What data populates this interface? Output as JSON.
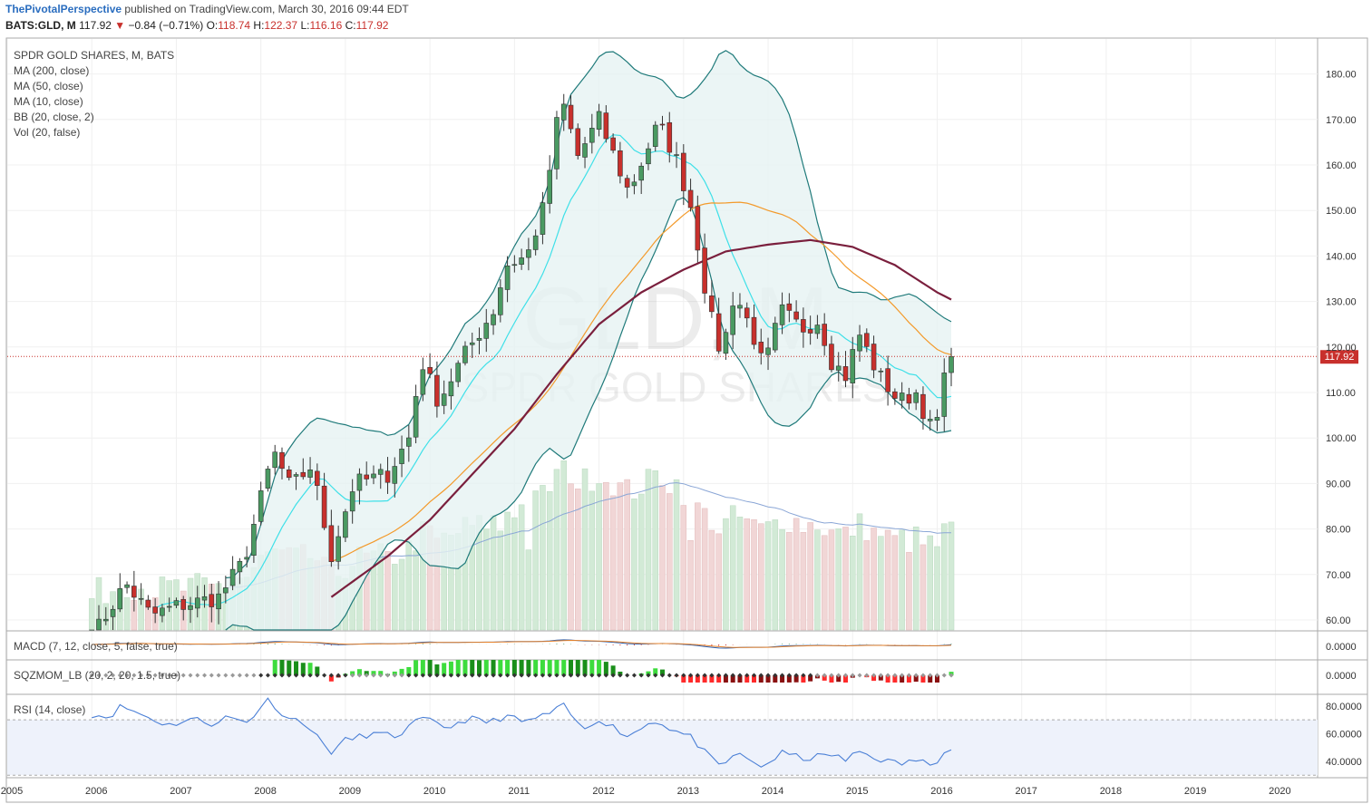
{
  "header": {
    "author": "ThePivotalPerspective",
    "published_text": "published on TradingView.com, March 30, 2016 09:44 EDT",
    "symbol": "BATS:GLD, M",
    "last": "117.92",
    "change_arrow": "▼",
    "change": "−0.84 (−0.71%)",
    "open_label": "O:",
    "open": "118.74",
    "high_label": "H:",
    "high": "122.37",
    "low_label": "L:",
    "low": "116.16",
    "close_label": "C:",
    "close": "117.92"
  },
  "legend": [
    "SPDR GOLD SHARES, M, BATS",
    "MA (200, close)",
    "MA (50, close)",
    "MA (10, close)",
    "BB (20, close, 2)",
    "Vol (20, false)"
  ],
  "watermark": {
    "symbol": "GLD, M",
    "name": "SPDR GOLD SHARES"
  },
  "last_price_tag": "117.92",
  "pane_labels": {
    "macd": "MACD (7, 12, close, 5, false, true)",
    "sqz": "SQZMOM_LB (20, 2, 20, 1.5, true)",
    "rsi": "RSI (14, close)"
  },
  "colors": {
    "up_candle": "#4a9a62",
    "down_candle": "#c8302c",
    "ma200": "#7a1f3d",
    "ma50": "#f39a2b",
    "ma10": "#3ee0e8",
    "bollinger": "#1f7a7a",
    "bollinger_fill": "#e6f3f3",
    "volume_up": "#d2ead6",
    "volume_down": "#f1d6d6",
    "rsi_line": "#4a7fd6"
  },
  "chart_data": [
    {
      "type": "candlestick",
      "title": "SPDR GOLD SHARES, M, BATS",
      "ylim": [
        57,
        187
      ],
      "yticks": [
        "60.00",
        "70.00",
        "80.00",
        "90.00",
        "100.00",
        "110.00",
        "120.00",
        "130.00",
        "140.00",
        "150.00",
        "160.00",
        "170.00",
        "180.00"
      ],
      "xticks": [
        "2005",
        "2006",
        "2007",
        "2008",
        "2009",
        "2010",
        "2011",
        "2012",
        "2013",
        "2014",
        "2015",
        "2016",
        "2017",
        "2018",
        "2019",
        "2020"
      ],
      "start": "2006-01",
      "close_anchors": [
        [
          2006.0,
          56.0
        ],
        [
          2006.4,
          68.0
        ],
        [
          2006.7,
          61.0
        ],
        [
          2007.0,
          63.0
        ],
        [
          2007.5,
          65.0
        ],
        [
          2007.8,
          73.0
        ],
        [
          2008.15,
          97.0
        ],
        [
          2008.35,
          89.0
        ],
        [
          2008.6,
          94.0
        ],
        [
          2008.83,
          74.0
        ],
        [
          2009.1,
          90.0
        ],
        [
          2009.5,
          92.0
        ],
        [
          2009.75,
          100.0
        ],
        [
          2009.9,
          117.0
        ],
        [
          2010.1,
          108.0
        ],
        [
          2010.4,
          118.0
        ],
        [
          2010.75,
          128.0
        ],
        [
          2010.9,
          138.0
        ],
        [
          2011.15,
          140.0
        ],
        [
          2011.35,
          151.0
        ],
        [
          2011.55,
          175.0
        ],
        [
          2011.75,
          162.0
        ],
        [
          2012.0,
          170.0
        ],
        [
          2012.35,
          154.0
        ],
        [
          2012.7,
          169.0
        ],
        [
          2012.9,
          162.0
        ],
        [
          2013.1,
          150.0
        ],
        [
          2013.3,
          128.0
        ],
        [
          2013.45,
          118.0
        ],
        [
          2013.6,
          132.0
        ],
        [
          2013.8,
          124.0
        ],
        [
          2013.95,
          115.0
        ],
        [
          2014.15,
          128.0
        ],
        [
          2014.4,
          124.0
        ],
        [
          2014.6,
          126.0
        ],
        [
          2014.75,
          117.0
        ],
        [
          2014.95,
          113.0
        ],
        [
          2015.05,
          124.0
        ],
        [
          2015.3,
          114.0
        ],
        [
          2015.55,
          108.0
        ],
        [
          2015.75,
          110.0
        ],
        [
          2015.95,
          101.0
        ],
        [
          2016.05,
          107.0
        ],
        [
          2016.12,
          118.8
        ],
        [
          2016.21,
          117.92
        ]
      ],
      "last_close": 117.92
    },
    {
      "type": "line",
      "title": "MACD (7, 12, close, 5, false, true)",
      "yticks": [
        "0.0000"
      ]
    },
    {
      "type": "bar",
      "title": "SQZMOM_LB (20, 2, 20, 1.5, true)",
      "yticks": [
        "0.0000"
      ]
    },
    {
      "type": "line",
      "title": "RSI (14, close)",
      "ylim": [
        30,
        85
      ],
      "yticks": [
        "80.0000",
        "60.0000",
        "40.0000"
      ],
      "bands": [
        30,
        70
      ],
      "anchors": [
        [
          2006.0,
          74.0
        ],
        [
          2006.2,
          72.0
        ],
        [
          2006.35,
          80.0
        ],
        [
          2006.7,
          71.0
        ],
        [
          2006.9,
          66.0
        ],
        [
          2007.2,
          71.0
        ],
        [
          2007.4,
          67.0
        ],
        [
          2007.6,
          72.0
        ],
        [
          2007.85,
          68.0
        ],
        [
          2008.0,
          80.0
        ],
        [
          2008.1,
          85.0
        ],
        [
          2008.3,
          71.0
        ],
        [
          2008.5,
          69.0
        ],
        [
          2008.7,
          55.0
        ],
        [
          2008.83,
          47.0
        ],
        [
          2009.0,
          55.0
        ],
        [
          2009.3,
          60.0
        ],
        [
          2009.6,
          58.0
        ],
        [
          2009.9,
          71.0
        ],
        [
          2010.2,
          64.0
        ],
        [
          2010.45,
          71.0
        ],
        [
          2010.7,
          68.0
        ],
        [
          2010.9,
          73.0
        ],
        [
          2011.1,
          68.0
        ],
        [
          2011.35,
          73.0
        ],
        [
          2011.6,
          80.0
        ],
        [
          2011.8,
          62.0
        ],
        [
          2012.0,
          71.0
        ],
        [
          2012.35,
          58.0
        ],
        [
          2012.65,
          70.0
        ],
        [
          2012.9,
          62.0
        ],
        [
          2013.1,
          57.0
        ],
        [
          2013.3,
          43.0
        ],
        [
          2013.45,
          35.0
        ],
        [
          2013.6,
          46.0
        ],
        [
          2013.8,
          40.0
        ],
        [
          2013.95,
          36.0
        ],
        [
          2014.15,
          46.0
        ],
        [
          2014.45,
          42.0
        ],
        [
          2014.75,
          45.0
        ],
        [
          2014.95,
          40.0
        ],
        [
          2015.05,
          48.0
        ],
        [
          2015.3,
          42.0
        ],
        [
          2015.55,
          38.0
        ],
        [
          2015.75,
          41.0
        ],
        [
          2015.95,
          37.0
        ],
        [
          2016.1,
          50.0
        ],
        [
          2016.21,
          51.0
        ]
      ]
    }
  ]
}
